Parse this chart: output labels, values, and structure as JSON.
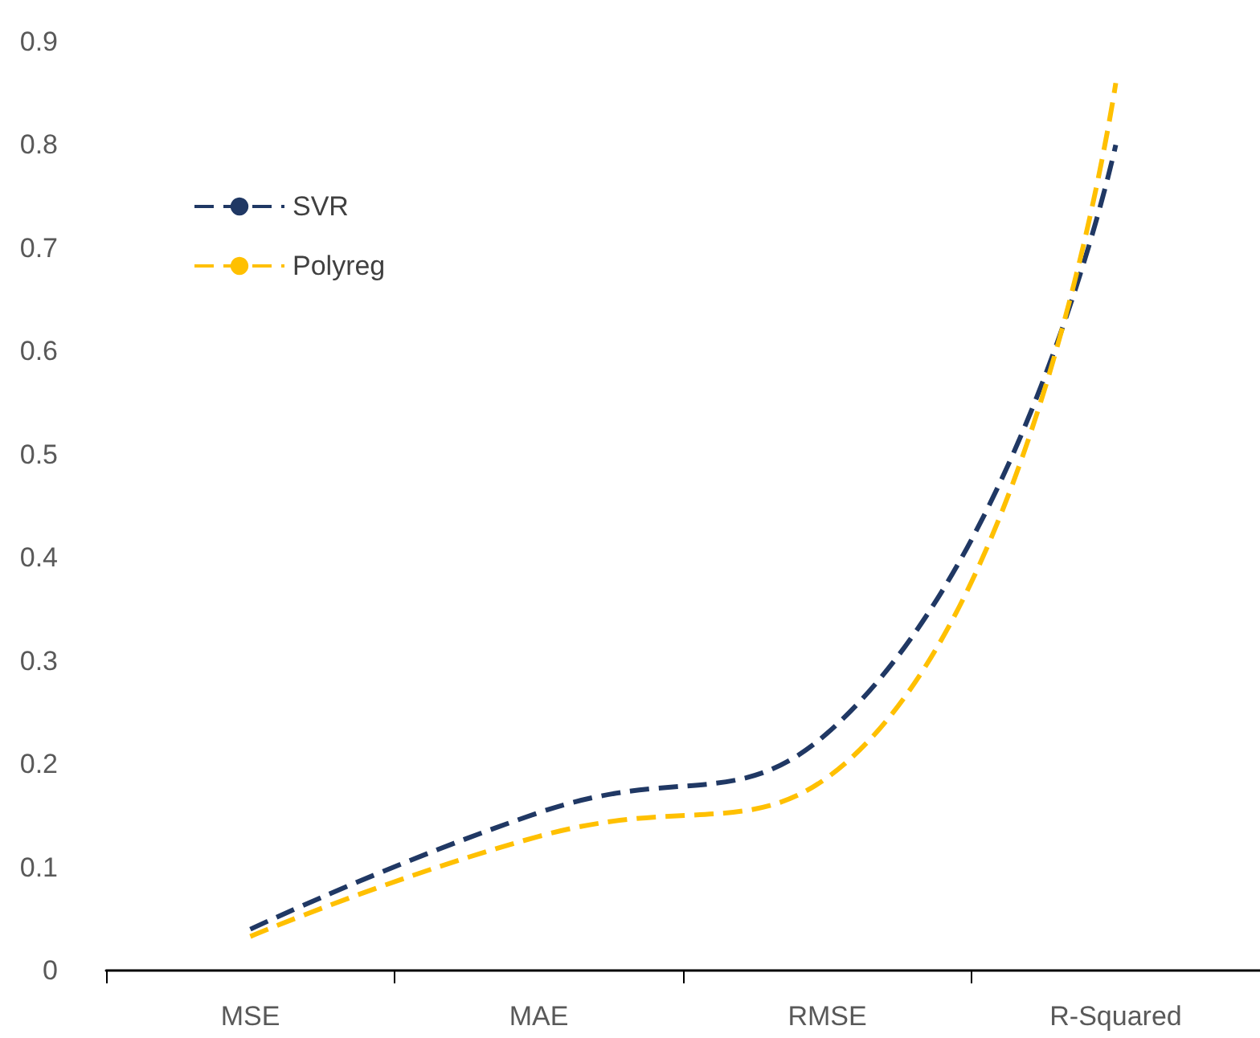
{
  "chart_data": {
    "type": "line",
    "categories": [
      "MSE",
      "MAE",
      "RMSE",
      "R-Squared"
    ],
    "series": [
      {
        "name": "SVR",
        "color": "#203864",
        "values": [
          0.04,
          0.153,
          0.23,
          0.8
        ],
        "line_style": "dashed"
      },
      {
        "name": "Polyreg",
        "color": "#ffc000",
        "values": [
          0.033,
          0.13,
          0.187,
          0.86
        ],
        "line_style": "dashed"
      }
    ],
    "ylim": [
      0,
      0.9
    ],
    "yticks": [
      0,
      0.1,
      0.2,
      0.3,
      0.4,
      0.5,
      0.6,
      0.7,
      0.8,
      0.9
    ],
    "grid": false,
    "legend": "top left",
    "marker": "none"
  }
}
